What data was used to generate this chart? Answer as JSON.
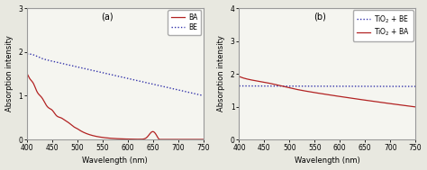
{
  "panel_a": {
    "label": "(a)",
    "xlim": [
      400,
      750
    ],
    "ylim": [
      0,
      3
    ],
    "yticks": [
      0,
      1,
      2,
      3
    ],
    "xticks": [
      400,
      450,
      500,
      550,
      600,
      650,
      700,
      750
    ],
    "xlabel": "Wavelength (nm)",
    "ylabel": "Absorption intensity",
    "legend": [
      "BA",
      "BE"
    ],
    "ba_color": "#b22222",
    "be_color": "#3333aa"
  },
  "panel_b": {
    "label": "(b)",
    "xlim": [
      400,
      750
    ],
    "ylim": [
      0,
      4
    ],
    "yticks": [
      0,
      1,
      2,
      3,
      4
    ],
    "xticks": [
      400,
      450,
      500,
      550,
      600,
      650,
      700,
      750
    ],
    "xlabel": "Wavelength (nm)",
    "ylabel": "Absorption intensity",
    "tio2be_color": "#3333aa",
    "tio2ba_color": "#b22222"
  },
  "background": "#f5f5f0",
  "spine_color": "#888888",
  "fig_bg": "#e8e8e0"
}
